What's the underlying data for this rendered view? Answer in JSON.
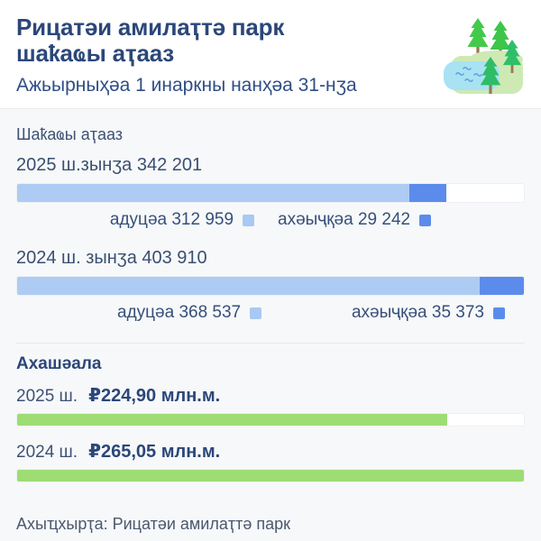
{
  "header": {
    "title_line1": "Рицатәи амилаҭтә парк",
    "title_line2": "шаҟаҩы аҭааз",
    "subtitle": "Ажьырныҳәа 1 инаркны нанҳәа 31-нӡа",
    "icon": "park-landscape"
  },
  "colors": {
    "adults_blue": "#aecbf4",
    "children_blue": "#5b8cec",
    "revenue_green": "#9edd74",
    "title_navy": "#2b4779",
    "background": "#f7f8f9"
  },
  "visitors": {
    "section_label": "Шаҟаҩы аҭааз",
    "rows": [
      {
        "year_label": "2025 ш.зынӡа 342 201",
        "adults_text": "адуцәа 312 959",
        "children_text": "ахәыҷқәа 29 242",
        "adults_pct": 77.48,
        "children_pct": 7.24
      },
      {
        "year_label": "2024 ш. зынӡа 403 910",
        "adults_text": "адуцәа 368 537",
        "children_text": "ахәыҷқәа 35 373",
        "adults_pct": 91.24,
        "children_pct": 8.76
      }
    ]
  },
  "revenue": {
    "section_label": "Ахашәала",
    "rows": [
      {
        "year_label": "2025 ш.",
        "amount": "₽224,90 млн.м.",
        "pct": 84.85
      },
      {
        "year_label": "2024 ш.",
        "amount": "₽265,05 млн.м.",
        "pct": 100
      }
    ]
  },
  "footer": {
    "source": "Ахыҵхырҭа: Рицатәи амилаҭтә парк"
  },
  "chart_data": [
    {
      "type": "bar",
      "title": "Шаҟаҩы аҭааз (Рицатәи амилаҭтә парк, Ажьырныҳәа 1 — нанҳәа 31)",
      "orientation": "horizontal-stacked",
      "categories": [
        "2025",
        "2024"
      ],
      "series": [
        {
          "name": "адуцәа",
          "values": [
            312959,
            368537
          ],
          "color": "#aecbf4"
        },
        {
          "name": "ахәыҷқәа",
          "values": [
            29242,
            35373
          ],
          "color": "#5b8cec"
        }
      ],
      "totals": [
        342201,
        403910
      ],
      "xlim": [
        0,
        403910
      ],
      "grid": false,
      "legend_position": "below-each-bar"
    },
    {
      "type": "bar",
      "title": "Ахашәала",
      "orientation": "horizontal",
      "categories": [
        "2025",
        "2024"
      ],
      "values": [
        224.9,
        265.05
      ],
      "unit": "млн ₽",
      "color": "#9edd74",
      "xlim": [
        0,
        265.05
      ],
      "grid": false
    }
  ]
}
